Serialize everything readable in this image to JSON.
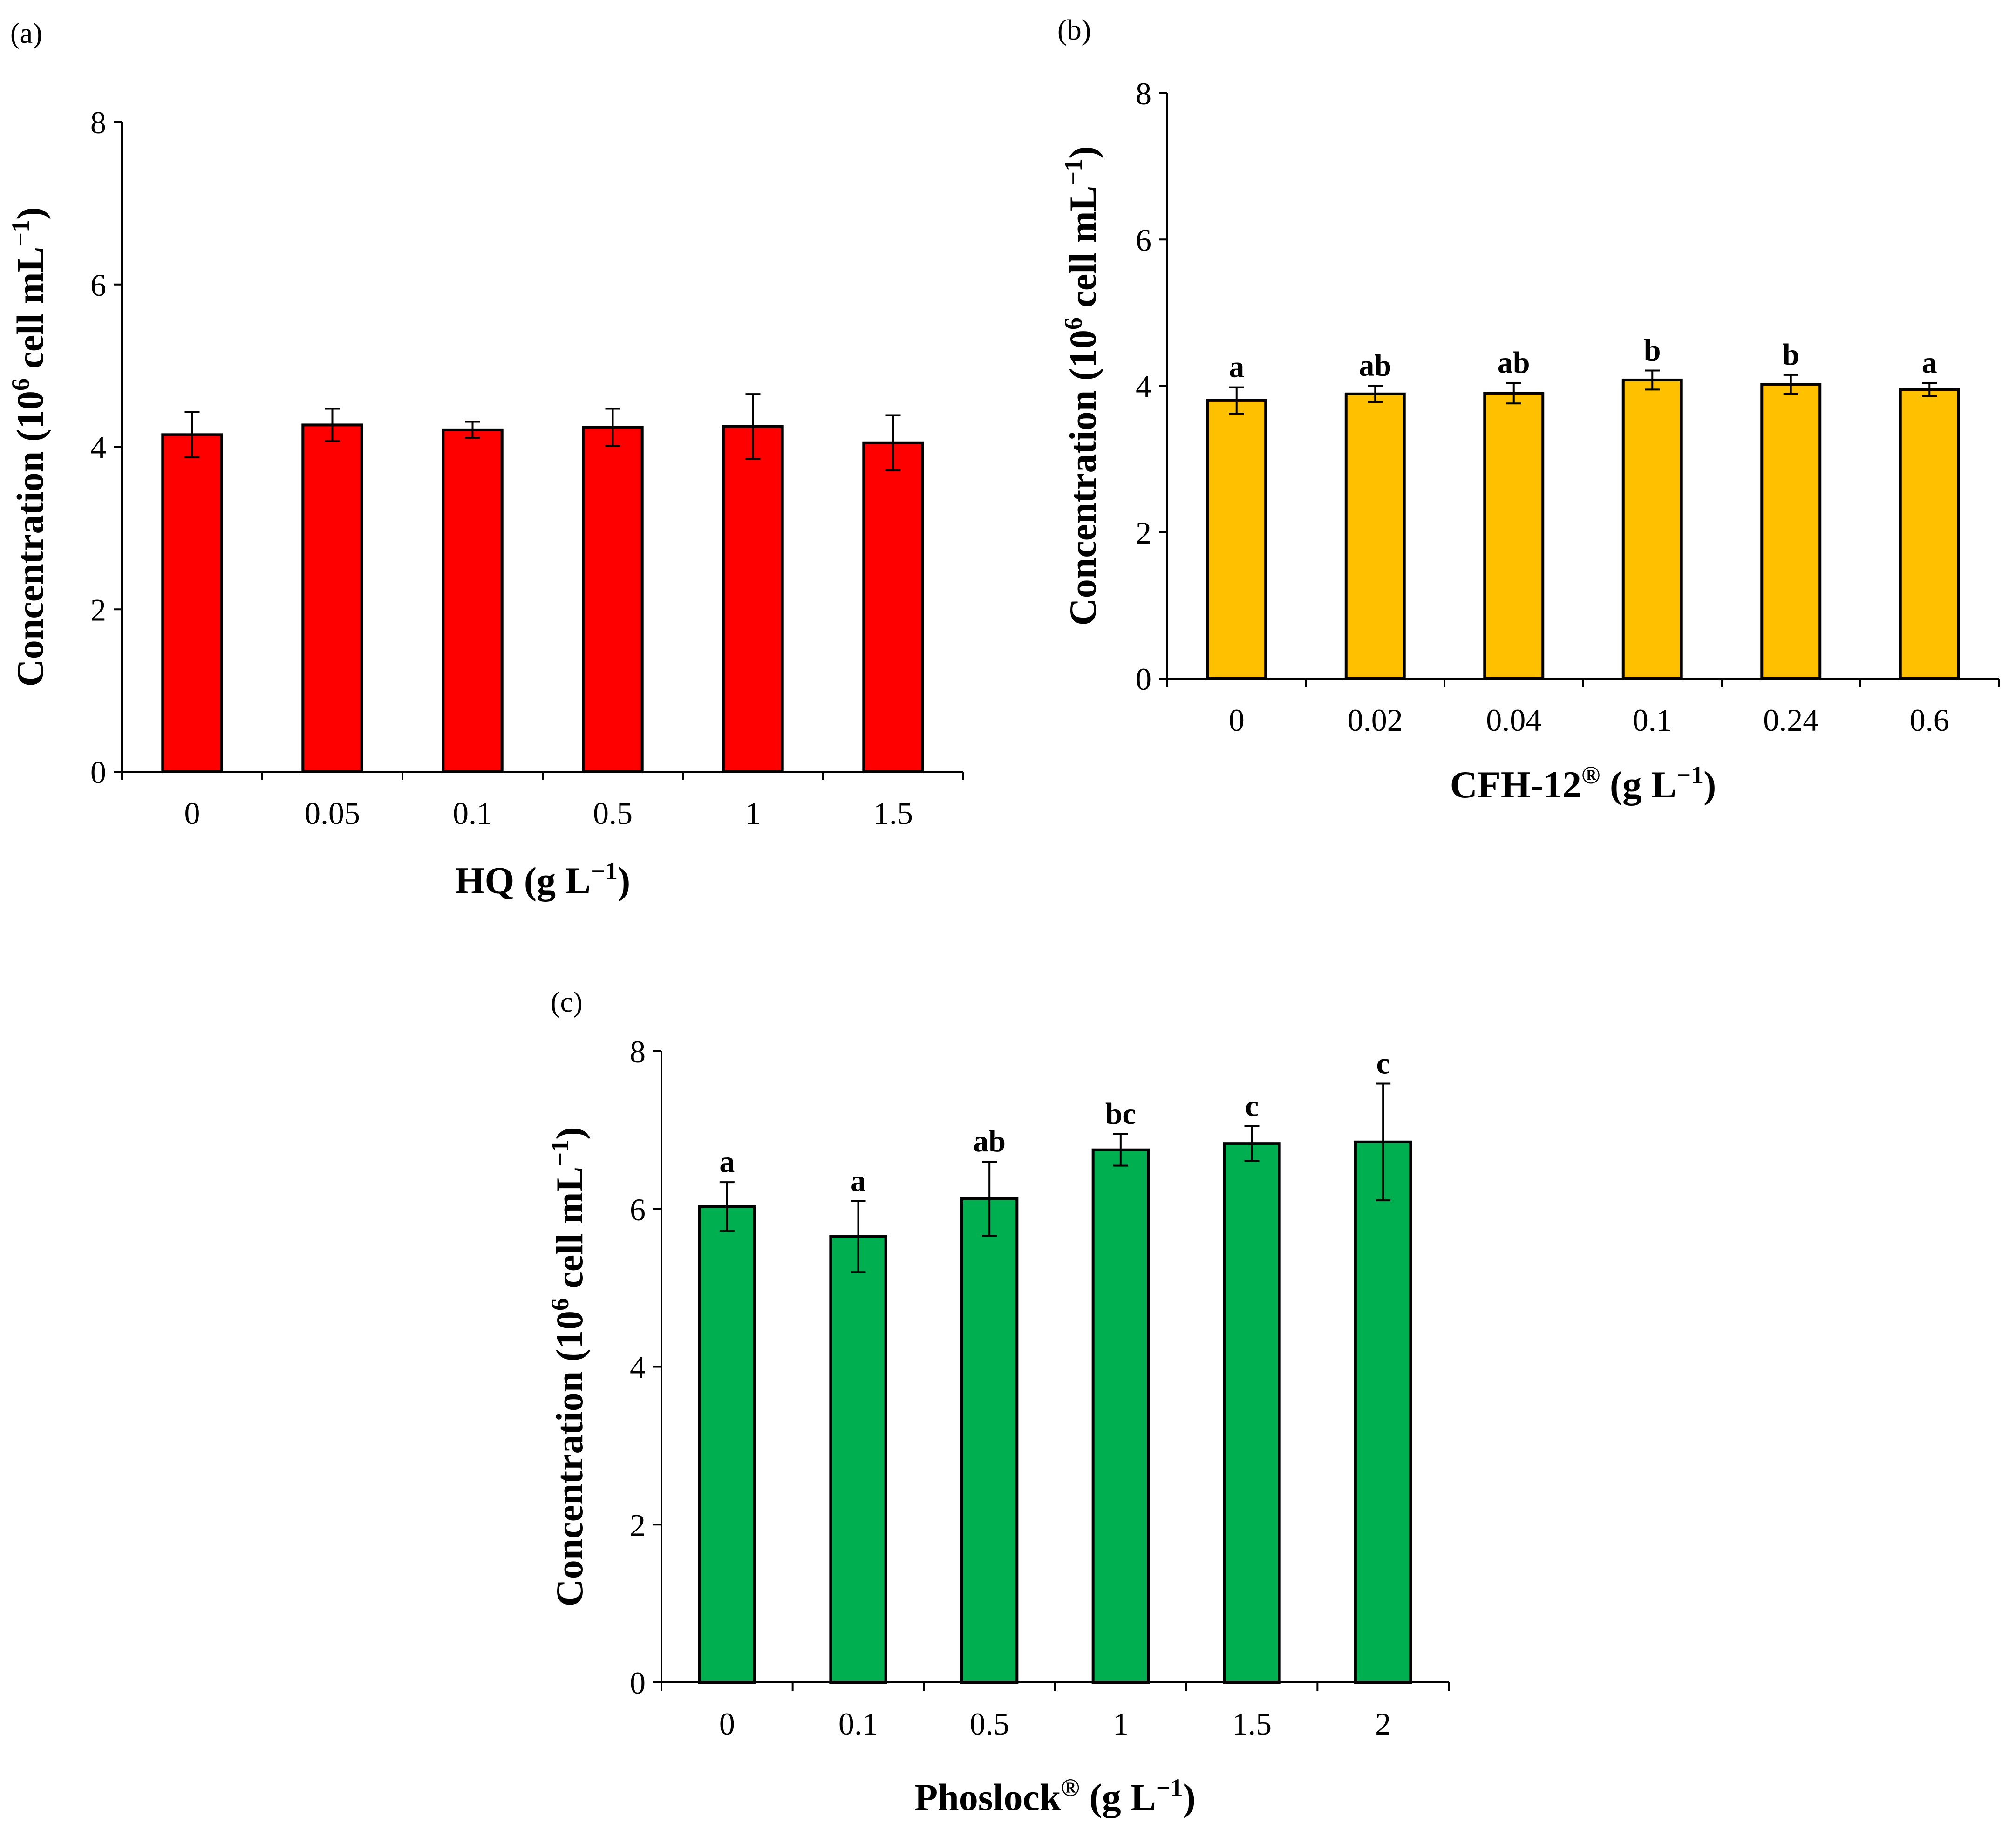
{
  "colors": {
    "hq": "#ff0000",
    "cfh": "#ffc000",
    "phoslock": "#00b050"
  },
  "chart_data": [
    {
      "id": "a",
      "type": "bar",
      "panel_label": "(a)",
      "categories": [
        "0",
        "0.05",
        "0.1",
        "0.5",
        "1",
        "1.5"
      ],
      "series": [
        {
          "name": "HQ",
          "values": [
            4.15,
            4.27,
            4.21,
            4.24,
            4.25,
            4.05
          ],
          "errors": [
            0.28,
            0.2,
            0.1,
            0.23,
            0.4,
            0.34
          ]
        }
      ],
      "significance": [],
      "xlabel": {
        "main": "HQ (g L",
        "sup": "−1",
        "end": ")"
      },
      "ylabel": {
        "main": "Concentration (10",
        "sup1": "6",
        "mid": " cell mL",
        "sup2": "−1",
        "end": ")"
      },
      "ylim": [
        0,
        8
      ],
      "yticks": [
        "0",
        "2",
        "4",
        "6",
        "8"
      ],
      "color": "#ff0000"
    },
    {
      "id": "b",
      "type": "bar",
      "panel_label": "(b)",
      "categories": [
        "0",
        "0.02",
        "0.04",
        "0.1",
        "0.24",
        "0.6"
      ],
      "series": [
        {
          "name": "CFH-12",
          "values": [
            3.8,
            3.89,
            3.9,
            4.08,
            4.02,
            3.95
          ],
          "errors": [
            0.18,
            0.11,
            0.14,
            0.13,
            0.13,
            0.09
          ]
        }
      ],
      "significance": [
        "a",
        "ab",
        "ab",
        "b",
        "b",
        "a"
      ],
      "xlabel": {
        "main": "CFH-12",
        "sup": "®",
        "mid": " (g L",
        "sup2": "−1",
        "end": ")"
      },
      "ylabel": {
        "main": "Concentration (10",
        "sup1": "6",
        "mid": " cell mL",
        "sup2": "−1",
        "end": ")"
      },
      "ylim": [
        0,
        8
      ],
      "yticks": [
        "0",
        "2",
        "4",
        "6",
        "8"
      ],
      "color": "#ffc000"
    },
    {
      "id": "c",
      "type": "bar",
      "panel_label": "(c)",
      "categories": [
        "0",
        "0.1",
        "0.5",
        "1",
        "1.5",
        "2"
      ],
      "series": [
        {
          "name": "Phoslock",
          "values": [
            6.03,
            5.65,
            6.13,
            6.75,
            6.83,
            6.85
          ],
          "errors": [
            0.31,
            0.45,
            0.47,
            0.2,
            0.22,
            0.74
          ]
        }
      ],
      "significance": [
        "a",
        "a",
        "ab",
        "bc",
        "c",
        "c"
      ],
      "xlabel": {
        "main": "Phoslock",
        "sup": "®",
        "mid": " (g L",
        "sup2": "−1",
        "end": ")"
      },
      "ylabel": {
        "main": "Concentration (10",
        "sup1": "6",
        "mid": " cell mL",
        "sup2": "−1",
        "end": ")"
      },
      "ylim": [
        0,
        8
      ],
      "yticks": [
        "0",
        "2",
        "4",
        "6",
        "8"
      ],
      "color": "#00b050"
    }
  ]
}
